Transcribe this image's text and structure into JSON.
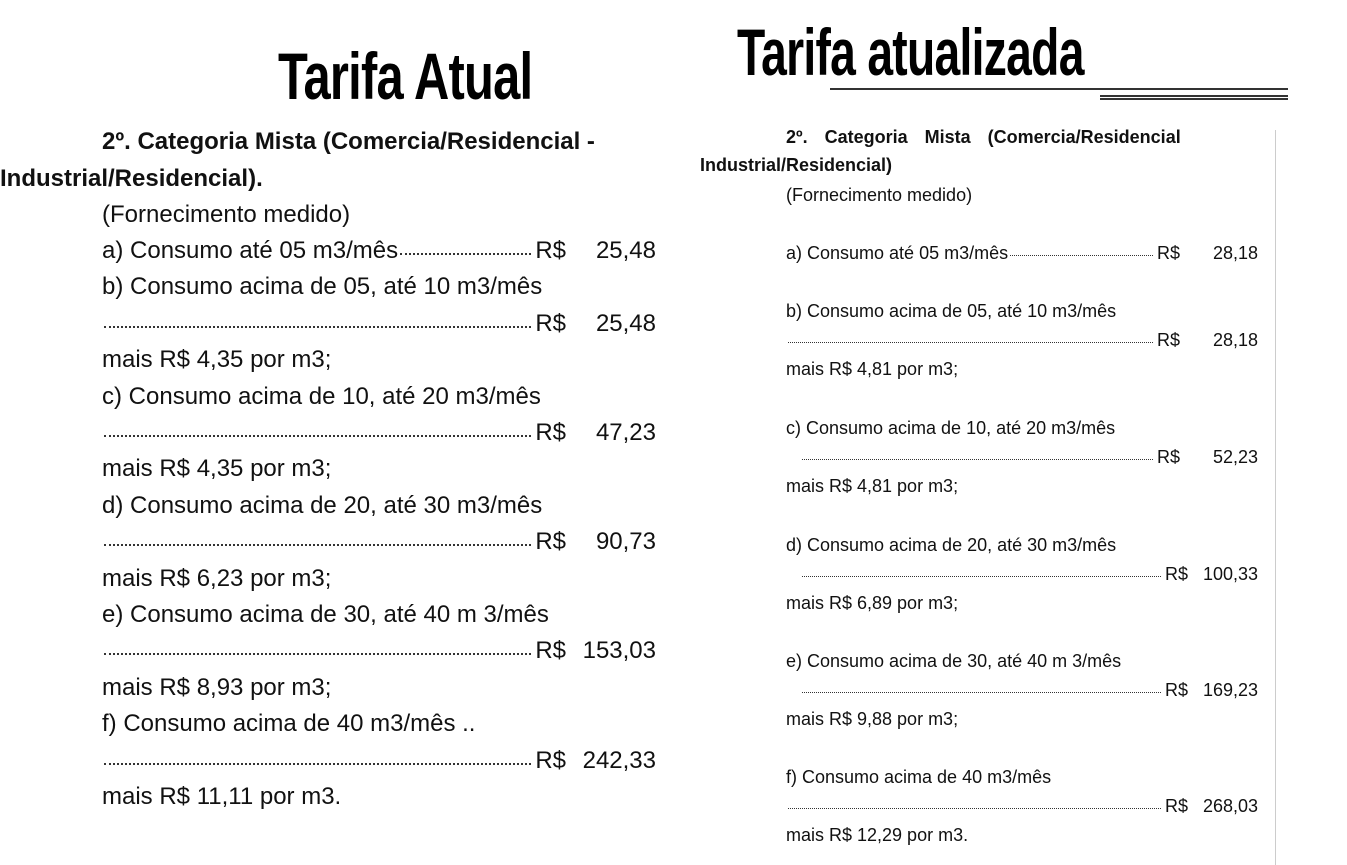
{
  "left": {
    "title": "Tarifa Atual",
    "heading_1": "2º. Categoria Mista (Comercia/Residencial -",
    "heading_2": "Industrial/Residencial).",
    "subheading": "(Fornecimento medido)",
    "currency": "R$",
    "items": [
      {
        "label": "a) Consumo até 05 m3/mês",
        "amount": "25,48",
        "extra": ""
      },
      {
        "label": "b) Consumo acima de 05, até 10 m3/mês",
        "amount": "25,48",
        "extra": "mais R$ 4,35 por m3;"
      },
      {
        "label": "c) Consumo acima de 10, até 20 m3/mês",
        "amount": "47,23",
        "extra": "mais R$ 4,35 por m3;"
      },
      {
        "label": "d) Consumo acima de 20, até 30 m3/mês",
        "amount": "90,73",
        "extra": "mais R$ 6,23 por m3;"
      },
      {
        "label": "e) Consumo acima de 30, até 40 m 3/mês",
        "amount": "153,03",
        "extra": "mais R$ 8,93 por m3;"
      },
      {
        "label": "f) Consumo acima de 40 m3/mês ..",
        "amount": "242,33",
        "extra": "mais R$ 11,11 por m3."
      }
    ]
  },
  "right": {
    "title": "Tarifa atualizada",
    "heading_1": "2º. Categoria Mista (Comercia/Residencial",
    "heading_2": "Industrial/Residencial)",
    "subheading": "(Fornecimento medido)",
    "currency": "R$",
    "items": [
      {
        "label": "a) Consumo até 05 m3/mês",
        "amount": "28,18",
        "extra": ""
      },
      {
        "label": "b) Consumo acima de 05, até 10 m3/mês",
        "amount": "28,18",
        "extra": "mais R$ 4,81 por m3;"
      },
      {
        "label": "c) Consumo acima de 10, até 20 m3/mês",
        "amount": "52,23",
        "extra": "mais R$ 4,81 por m3;"
      },
      {
        "label": "d) Consumo acima de 20, até 30 m3/mês",
        "amount": "100,33",
        "extra": "mais R$ 6,89 por m3;"
      },
      {
        "label": "e) Consumo acima de 30, até 40 m 3/mês",
        "amount": "169,23",
        "extra": "mais R$ 9,88 por m3;"
      },
      {
        "label": "f) Consumo acima de 40 m3/mês",
        "amount": "268,03",
        "extra": "mais R$ 12,29 por m3."
      }
    ]
  }
}
